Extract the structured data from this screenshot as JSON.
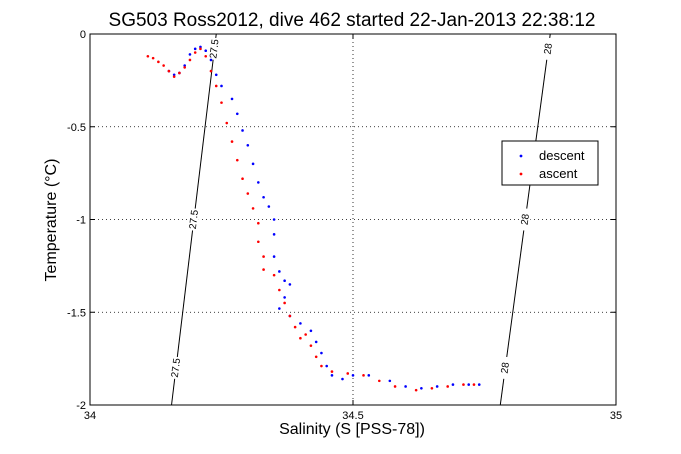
{
  "chart_data": {
    "type": "scatter",
    "title": "SG503 Ross2012, dive 462 started 22-Jan-2013 22:38:12",
    "xlabel": "Salinity (S [PSS-78])",
    "ylabel": "Temperature (°C)",
    "xlim": [
      34,
      35
    ],
    "ylim": [
      -2,
      0
    ],
    "xticks": [
      34,
      34.5,
      35
    ],
    "xtick_labels": [
      "34",
      "34.5",
      "35"
    ],
    "yticks": [
      0,
      -0.5,
      -1,
      -1.5,
      -2
    ],
    "ytick_labels": [
      "0",
      "-0.5",
      "-1",
      "-1.5",
      "-2"
    ],
    "grid": true,
    "grid_style": "dotted",
    "legend_position": "right",
    "series": [
      {
        "name": "descent",
        "color": "#0000ff",
        "points": [
          [
            34.15,
            -0.2
          ],
          [
            34.16,
            -0.22
          ],
          [
            34.17,
            -0.21
          ],
          [
            34.18,
            -0.17
          ],
          [
            34.19,
            -0.11
          ],
          [
            34.2,
            -0.08
          ],
          [
            34.21,
            -0.07
          ],
          [
            34.22,
            -0.09
          ],
          [
            34.23,
            -0.14
          ],
          [
            34.24,
            -0.22
          ],
          [
            34.25,
            -0.28
          ],
          [
            34.27,
            -0.35
          ],
          [
            34.28,
            -0.43
          ],
          [
            34.29,
            -0.52
          ],
          [
            34.3,
            -0.6
          ],
          [
            34.31,
            -0.7
          ],
          [
            34.32,
            -0.8
          ],
          [
            34.33,
            -0.88
          ],
          [
            34.34,
            -0.93
          ],
          [
            34.35,
            -1.0
          ],
          [
            34.35,
            -1.08
          ],
          [
            34.35,
            -1.2
          ],
          [
            34.36,
            -1.28
          ],
          [
            34.37,
            -1.33
          ],
          [
            34.38,
            -1.35
          ],
          [
            34.37,
            -1.42
          ],
          [
            34.36,
            -1.48
          ],
          [
            34.38,
            -1.52
          ],
          [
            34.4,
            -1.56
          ],
          [
            34.42,
            -1.6
          ],
          [
            34.43,
            -1.66
          ],
          [
            34.44,
            -1.72
          ],
          [
            34.45,
            -1.79
          ],
          [
            34.46,
            -1.84
          ],
          [
            34.48,
            -1.86
          ],
          [
            34.5,
            -1.84
          ],
          [
            34.53,
            -1.84
          ],
          [
            34.57,
            -1.87
          ],
          [
            34.6,
            -1.9
          ],
          [
            34.63,
            -1.91
          ],
          [
            34.66,
            -1.9
          ],
          [
            34.69,
            -1.89
          ],
          [
            34.72,
            -1.89
          ],
          [
            34.74,
            -1.89
          ]
        ]
      },
      {
        "name": "ascent",
        "color": "#ff0000",
        "points": [
          [
            34.11,
            -0.12
          ],
          [
            34.12,
            -0.13
          ],
          [
            34.13,
            -0.15
          ],
          [
            34.14,
            -0.17
          ],
          [
            34.15,
            -0.2
          ],
          [
            34.16,
            -0.23
          ],
          [
            34.17,
            -0.21
          ],
          [
            34.18,
            -0.18
          ],
          [
            34.19,
            -0.14
          ],
          [
            34.2,
            -0.1
          ],
          [
            34.21,
            -0.08
          ],
          [
            34.22,
            -0.12
          ],
          [
            34.23,
            -0.2
          ],
          [
            34.24,
            -0.28
          ],
          [
            34.25,
            -0.37
          ],
          [
            34.26,
            -0.48
          ],
          [
            34.27,
            -0.58
          ],
          [
            34.28,
            -0.68
          ],
          [
            34.29,
            -0.78
          ],
          [
            34.3,
            -0.86
          ],
          [
            34.31,
            -0.94
          ],
          [
            34.32,
            -1.02
          ],
          [
            34.32,
            -1.12
          ],
          [
            34.33,
            -1.2
          ],
          [
            34.33,
            -1.27
          ],
          [
            34.35,
            -1.3
          ],
          [
            34.36,
            -1.38
          ],
          [
            34.37,
            -1.45
          ],
          [
            34.38,
            -1.52
          ],
          [
            34.39,
            -1.58
          ],
          [
            34.4,
            -1.64
          ],
          [
            34.41,
            -1.62
          ],
          [
            34.42,
            -1.68
          ],
          [
            34.43,
            -1.74
          ],
          [
            34.44,
            -1.79
          ],
          [
            34.46,
            -1.82
          ],
          [
            34.49,
            -1.83
          ],
          [
            34.52,
            -1.84
          ],
          [
            34.55,
            -1.87
          ],
          [
            34.58,
            -1.9
          ],
          [
            34.62,
            -1.92
          ],
          [
            34.65,
            -1.91
          ],
          [
            34.68,
            -1.9
          ],
          [
            34.71,
            -1.89
          ],
          [
            34.73,
            -1.89
          ]
        ]
      }
    ],
    "contours": [
      {
        "label": "27.5",
        "x_bottom": 34.155,
        "x_top": 34.24
      },
      {
        "label": "28",
        "x_bottom": 34.78,
        "x_top": 34.875
      }
    ]
  }
}
